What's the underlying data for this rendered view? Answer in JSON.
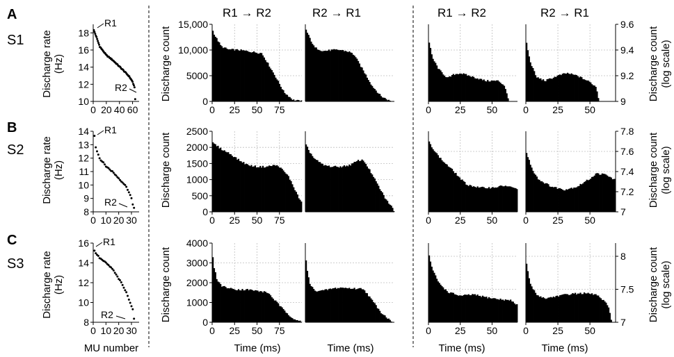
{
  "column_titles": [
    "R1 → R2",
    "R2 → R1",
    "R1 → R2",
    "R2 → R1"
  ],
  "rows": [
    {
      "letter": "A",
      "subject": "S1"
    },
    {
      "letter": "B",
      "subject": "S2"
    },
    {
      "letter": "C",
      "subject": "S3"
    }
  ],
  "labels": {
    "rate_ylabel_line1": "Discharge rate",
    "rate_ylabel_line2": "(Hz)",
    "mu_xlabel": "MU number",
    "count_ylabel": "Discharge count",
    "log_ylabel_line1": "Discharge count",
    "log_ylabel_line2": "(log scale)",
    "time_xlabel": "Time (ms)",
    "r1": "R1",
    "r2": "R2"
  },
  "chart_data": [
    {
      "type": "scatter",
      "panel": "A rate",
      "title": "",
      "xlabel": "",
      "ylabel": "Discharge rate (Hz)",
      "xlim": [
        0,
        70
      ],
      "ylim": [
        10,
        19
      ],
      "xticks": [
        0,
        20,
        40,
        60
      ],
      "yticks": [
        10,
        12,
        14,
        16,
        18
      ],
      "curve": [
        [
          1,
          18.3
        ],
        [
          4,
          17.7
        ],
        [
          10,
          16.4
        ],
        [
          20,
          15.4
        ],
        [
          30,
          14.8
        ],
        [
          45,
          13.7
        ],
        [
          55,
          12.9
        ],
        [
          60,
          12.3
        ],
        [
          63,
          11.6
        ],
        [
          64,
          10.3
        ]
      ]
    },
    {
      "type": "bar",
      "panel": "A R1-R2",
      "title": "R1 → R2",
      "xlabel": "",
      "ylabel": "Discharge count",
      "xlim": [
        0,
        100
      ],
      "ylim": [
        0,
        15000
      ],
      "xticks": [
        0,
        25,
        50,
        75
      ],
      "yticks": [
        0,
        5000,
        10000,
        15000
      ],
      "ytick_labels": [
        "0",
        "5000",
        "10,000",
        "15,000"
      ],
      "envelope": [
        [
          0,
          14000
        ],
        [
          3,
          12800
        ],
        [
          10,
          10700
        ],
        [
          18,
          10100
        ],
        [
          30,
          10000
        ],
        [
          50,
          9500
        ],
        [
          55,
          9400
        ],
        [
          60,
          8000
        ],
        [
          70,
          5000
        ],
        [
          80,
          1800
        ],
        [
          90,
          300
        ],
        [
          100,
          0
        ]
      ]
    },
    {
      "type": "bar",
      "panel": "A R2-R1",
      "title": "R2 → R1",
      "xlabel": "",
      "ylabel": "",
      "xlim": [
        0,
        100
      ],
      "ylim": [
        0,
        15000
      ],
      "envelope": [
        [
          0,
          14200
        ],
        [
          3,
          13000
        ],
        [
          10,
          10500
        ],
        [
          20,
          9800
        ],
        [
          30,
          10000
        ],
        [
          40,
          10000
        ],
        [
          50,
          9600
        ],
        [
          55,
          9000
        ],
        [
          65,
          6000
        ],
        [
          75,
          3000
        ],
        [
          85,
          1000
        ],
        [
          95,
          100
        ],
        [
          100,
          0
        ]
      ]
    },
    {
      "type": "bar",
      "panel": "A log R1-R2",
      "title": "R1 → R2",
      "xlabel": "",
      "ylabel": "",
      "xlim": [
        0,
        70
      ],
      "ylim": [
        9.0,
        9.6
      ],
      "xticks": [
        0,
        25,
        50
      ],
      "envelope": [
        [
          0,
          9.48
        ],
        [
          3,
          9.34
        ],
        [
          8,
          9.25
        ],
        [
          15,
          9.18
        ],
        [
          20,
          9.21
        ],
        [
          25,
          9.22
        ],
        [
          35,
          9.19
        ],
        [
          45,
          9.16
        ],
        [
          55,
          9.16
        ],
        [
          60,
          9.12
        ],
        [
          63,
          9.0
        ]
      ]
    },
    {
      "type": "bar",
      "panel": "A log R2-R1",
      "title": "R2 → R1",
      "xlabel": "",
      "ylabel": "Discharge count (log scale)",
      "xlim": [
        0,
        70
      ],
      "ylim": [
        9.0,
        9.6
      ],
      "xticks": [
        0,
        25,
        50
      ],
      "yticks": [
        9.0,
        9.2,
        9.4,
        9.6
      ],
      "ytick_labels": [
        "9",
        "9.2",
        "9.4",
        "9.6"
      ],
      "envelope": [
        [
          0,
          9.48
        ],
        [
          3,
          9.32
        ],
        [
          8,
          9.19
        ],
        [
          15,
          9.16
        ],
        [
          25,
          9.2
        ],
        [
          32,
          9.22
        ],
        [
          40,
          9.2
        ],
        [
          50,
          9.15
        ],
        [
          55,
          9.11
        ],
        [
          57,
          9.0
        ]
      ]
    },
    {
      "type": "scatter",
      "panel": "B rate",
      "title": "",
      "xlabel": "",
      "ylabel": "Discharge rate (Hz)",
      "xlim": [
        0,
        36
      ],
      "ylim": [
        8,
        14
      ],
      "xticks": [
        0,
        10,
        20,
        30
      ],
      "yticks": [
        8,
        9,
        10,
        11,
        12,
        13,
        14
      ],
      "curve": [
        [
          1,
          13.7
        ],
        [
          2,
          12.8
        ],
        [
          5,
          12.0
        ],
        [
          10,
          11.4
        ],
        [
          15,
          11.0
        ],
        [
          20,
          10.5
        ],
        [
          25,
          10.0
        ],
        [
          28,
          9.5
        ],
        [
          30,
          9.0
        ],
        [
          31,
          8.5
        ],
        [
          32,
          8.3
        ]
      ]
    },
    {
      "type": "bar",
      "panel": "B R1-R2",
      "title": "",
      "xlabel": "",
      "ylabel": "Discharge count",
      "xlim": [
        0,
        100
      ],
      "ylim": [
        0,
        2500
      ],
      "xticks": [
        0,
        25,
        50,
        75
      ],
      "yticks": [
        0,
        500,
        1000,
        1500,
        2000,
        2500
      ],
      "envelope": [
        [
          0,
          2150
        ],
        [
          10,
          1950
        ],
        [
          20,
          1800
        ],
        [
          30,
          1600
        ],
        [
          40,
          1450
        ],
        [
          50,
          1400
        ],
        [
          60,
          1400
        ],
        [
          70,
          1450
        ],
        [
          75,
          1400
        ],
        [
          85,
          1100
        ],
        [
          92,
          700
        ],
        [
          97,
          400
        ],
        [
          100,
          300
        ]
      ]
    },
    {
      "type": "bar",
      "panel": "B R2-R1",
      "title": "",
      "xlabel": "",
      "ylabel": "",
      "xlim": [
        0,
        100
      ],
      "ylim": [
        0,
        2500
      ],
      "envelope": [
        [
          0,
          2100
        ],
        [
          5,
          1850
        ],
        [
          10,
          1650
        ],
        [
          20,
          1450
        ],
        [
          30,
          1400
        ],
        [
          40,
          1400
        ],
        [
          50,
          1450
        ],
        [
          60,
          1600
        ],
        [
          65,
          1600
        ],
        [
          70,
          1400
        ],
        [
          80,
          900
        ],
        [
          90,
          400
        ],
        [
          97,
          150
        ],
        [
          100,
          0
        ]
      ]
    },
    {
      "type": "bar",
      "panel": "B log R1-R2",
      "title": "",
      "xlabel": "",
      "ylabel": "",
      "xlim": [
        0,
        70
      ],
      "ylim": [
        7.0,
        7.8
      ],
      "xticks": [
        0,
        25,
        50
      ],
      "envelope": [
        [
          0,
          7.7
        ],
        [
          5,
          7.6
        ],
        [
          10,
          7.52
        ],
        [
          15,
          7.46
        ],
        [
          20,
          7.4
        ],
        [
          25,
          7.33
        ],
        [
          30,
          7.27
        ],
        [
          40,
          7.24
        ],
        [
          50,
          7.24
        ],
        [
          60,
          7.26
        ],
        [
          69,
          7.23
        ]
      ]
    },
    {
      "type": "bar",
      "panel": "B log R2-R1",
      "title": "",
      "xlabel": "",
      "ylabel": "Discharge count (log scale)",
      "xlim": [
        0,
        70
      ],
      "ylim": [
        7.0,
        7.8
      ],
      "xticks": [
        0,
        25,
        50
      ],
      "yticks": [
        7.0,
        7.2,
        7.4,
        7.6,
        7.8
      ],
      "ytick_labels": [
        "7",
        "7.2",
        "7.4",
        "7.6",
        "7.8"
      ],
      "envelope": [
        [
          0,
          7.6
        ],
        [
          5,
          7.42
        ],
        [
          10,
          7.32
        ],
        [
          20,
          7.25
        ],
        [
          30,
          7.22
        ],
        [
          40,
          7.25
        ],
        [
          50,
          7.33
        ],
        [
          55,
          7.38
        ],
        [
          62,
          7.37
        ],
        [
          69,
          7.32
        ]
      ]
    },
    {
      "type": "scatter",
      "panel": "C rate",
      "title": "",
      "xlabel": "MU number",
      "ylabel": "Discharge rate (Hz)",
      "xlim": [
        0,
        36
      ],
      "ylim": [
        8,
        16
      ],
      "xticks": [
        0,
        10,
        20,
        30
      ],
      "yticks": [
        8,
        10,
        12,
        14,
        16
      ],
      "curve": [
        [
          1,
          15.2
        ],
        [
          2,
          15.0
        ],
        [
          5,
          14.5
        ],
        [
          10,
          14.0
        ],
        [
          15,
          13.4
        ],
        [
          18,
          12.8
        ],
        [
          22,
          12.0
        ],
        [
          26,
          11.0
        ],
        [
          29,
          10.0
        ],
        [
          31,
          9.3
        ],
        [
          32,
          8.4
        ]
      ]
    },
    {
      "type": "bar",
      "panel": "C R1-R2",
      "title": "",
      "xlabel": "Time (ms)",
      "ylabel": "Discharge count",
      "xlim": [
        0,
        100
      ],
      "ylim": [
        0,
        4000
      ],
      "xticks": [
        0,
        25,
        50,
        75
      ],
      "yticks": [
        0,
        1000,
        2000,
        3000,
        4000
      ],
      "envelope": [
        [
          0,
          3500
        ],
        [
          2,
          2800
        ],
        [
          5,
          2200
        ],
        [
          10,
          1850
        ],
        [
          20,
          1700
        ],
        [
          30,
          1650
        ],
        [
          40,
          1650
        ],
        [
          55,
          1550
        ],
        [
          62,
          1500
        ],
        [
          70,
          1100
        ],
        [
          80,
          600
        ],
        [
          90,
          200
        ],
        [
          100,
          0
        ]
      ]
    },
    {
      "type": "bar",
      "panel": "C R2-R1",
      "title": "",
      "xlabel": "Time (ms)",
      "ylabel": "",
      "xlim": [
        0,
        100
      ],
      "ylim": [
        0,
        4000
      ],
      "envelope": [
        [
          0,
          3400
        ],
        [
          2,
          2600
        ],
        [
          5,
          1950
        ],
        [
          10,
          1600
        ],
        [
          20,
          1600
        ],
        [
          30,
          1700
        ],
        [
          40,
          1750
        ],
        [
          55,
          1700
        ],
        [
          65,
          1700
        ],
        [
          75,
          1100
        ],
        [
          85,
          500
        ],
        [
          95,
          100
        ],
        [
          100,
          0
        ]
      ]
    },
    {
      "type": "bar",
      "panel": "C log R1-R2",
      "title": "",
      "xlabel": "Time (ms)",
      "ylabel": "",
      "xlim": [
        0,
        70
      ],
      "ylim": [
        7.0,
        8.2
      ],
      "xticks": [
        0,
        25,
        50
      ],
      "envelope": [
        [
          0,
          8.05
        ],
        [
          3,
          7.8
        ],
        [
          8,
          7.6
        ],
        [
          15,
          7.46
        ],
        [
          25,
          7.4
        ],
        [
          35,
          7.42
        ],
        [
          45,
          7.38
        ],
        [
          55,
          7.35
        ],
        [
          65,
          7.33
        ],
        [
          69,
          7.27
        ]
      ]
    },
    {
      "type": "bar",
      "panel": "C log R2-R1",
      "title": "",
      "xlabel": "Time (ms)",
      "ylabel": "Discharge count (log scale)",
      "xlim": [
        0,
        70
      ],
      "ylim": [
        7.0,
        8.2
      ],
      "xticks": [
        0,
        25,
        50
      ],
      "yticks": [
        7.0,
        7.5,
        8.0
      ],
      "ytick_labels": [
        "7",
        "7.5",
        "8"
      ],
      "envelope": [
        [
          0,
          7.95
        ],
        [
          3,
          7.6
        ],
        [
          8,
          7.42
        ],
        [
          15,
          7.36
        ],
        [
          25,
          7.4
        ],
        [
          35,
          7.43
        ],
        [
          45,
          7.44
        ],
        [
          55,
          7.42
        ],
        [
          62,
          7.3
        ],
        [
          65,
          7.2
        ],
        [
          67,
          7.0
        ]
      ]
    }
  ]
}
